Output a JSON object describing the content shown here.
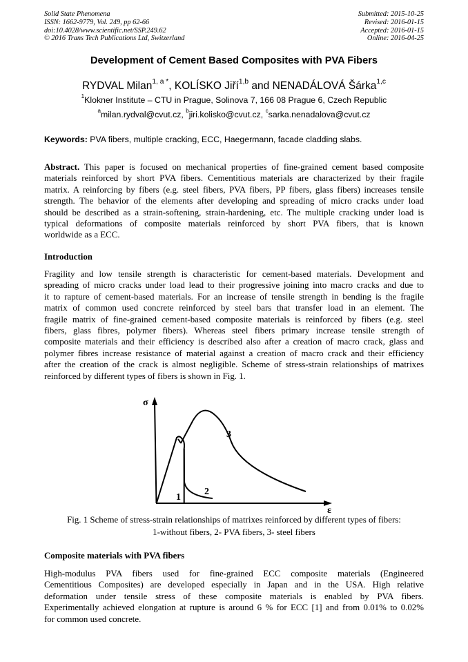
{
  "header": {
    "left": [
      "Solid State Phenomena",
      "ISSN: 1662-9779, Vol. 249, pp 62-66",
      "doi:10.4028/www.scientific.net/SSP.249.62",
      "© 2016 Trans Tech Publications Ltd, Switzerland"
    ],
    "right": [
      "Submitted: 2015-10-25",
      "Revised: 2016-01-15",
      "Accepted: 2016-01-15",
      "Online: 2016-04-25"
    ]
  },
  "title": "Development of Cement Based Composites with PVA Fibers",
  "authors": [
    {
      "name": "RYDVAL Milan",
      "sup": "1, a *"
    },
    {
      "name": "KOLÍSKO Jiří",
      "sup": "1,b"
    },
    {
      "name": "NENADÁLOVÁ Šárka",
      "sup": "1,c"
    }
  ],
  "authors_sep": [
    ", ",
    " and "
  ],
  "affiliation": {
    "sup": "1",
    "text": "Klokner Institute – CTU in Prague, Solinova 7, 166 08 Prague 6, Czech Republic"
  },
  "emails": [
    {
      "sup": "a",
      "text": "milan.rydval@cvut.cz, "
    },
    {
      "sup": "b",
      "text": "jiri.kolisko@cvut.cz, "
    },
    {
      "sup": "c",
      "text": "sarka.nenadalova@cvut.cz"
    }
  ],
  "keywords": {
    "label": "Keywords:",
    "text": " PVA fibers, multiple cracking, ECC, Haegermann, facade cladding slabs."
  },
  "abstract": {
    "label": "Abstract.",
    "lines": [
      " This paper is focused on mechanical properties of fine-grained cement based composite",
      "materials reinforced by short PVA fibers. Cementitious materials are characterized by their fragile",
      "matrix. A reinforcing by fibers (e.g. steel fibers, PVA fibers, PP fibers, glass fibers) increases tensile",
      "strength. The behavior of the elements after developing and spreading of micro cracks under load",
      "should be described as a strain-softening, strain-hardening, etc. The multiple cracking under load is",
      "typical deformations of composite materials reinforced by short PVA fibers, that is known",
      "worldwide as a ECC."
    ]
  },
  "introduction": {
    "heading": "Introduction",
    "lines": [
      "Fragility and low tensile strength is characteristic for cement-based materials. Development and",
      "spreading of micro cracks under load lead to their progressive joining into macro cracks and due to",
      "it to rapture of cement-based materials. For an increase of tensile strength in bending is the fragile",
      "matrix of common used concrete reinforced by steel bars that transfer load in an element. The",
      "fragile matrix of fine-grained cement-based composite materials is reinforced by fibers (e.g. steel",
      "fibers, glass fibres, polymer fibers). Whereas steel fibers primary increase tensile strength of",
      "composite materials and their efficiency is described also after a creation of macro crack, glass and",
      "polymer fibres increase resistance of material against a creation of macro crack and their efficiency",
      "after the creation of the crack is almost negligible. Scheme of stress-strain relationships of matrixes",
      "reinforced by different types of fibers is shown in Fig. 1."
    ]
  },
  "figure": {
    "y_label": "σ",
    "x_label": "ε",
    "curve_labels": [
      "1",
      "2",
      "3"
    ],
    "caption": [
      "Fig. 1 Scheme of stress-strain relationships of matrixes reinforced by different types of fibers:",
      "1-without fibers, 2- PVA fibers, 3- steel fibers"
    ]
  },
  "composite": {
    "heading": "Composite materials with PVA fibers",
    "lines": [
      "High-modulus PVA fibers used for fine-grained ECC composite materials (Engineered",
      "Cementitious Composites) are developed especially in Japan and in the USA. High relative",
      "deformation under tensile stress of these composite materials is enabled by PVA fibers.",
      "Experimentally achieved elongation at rupture is around 6 % for ECC [1] and from 0.01% to 0.02%",
      "for common used concrete."
    ]
  }
}
